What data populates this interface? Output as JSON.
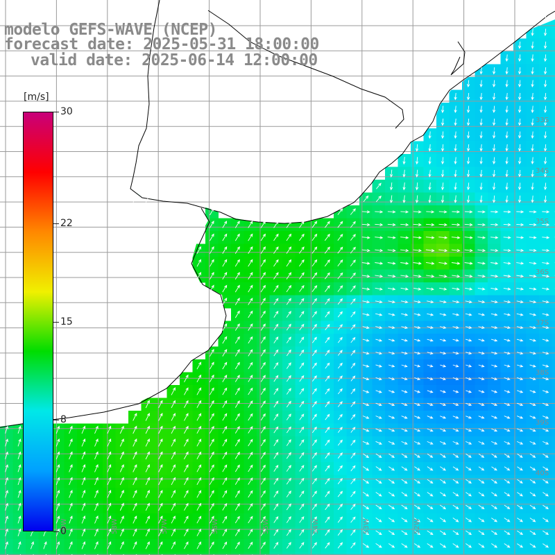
{
  "titles": {
    "line1": "modelo GEFS-WAVE (NCEP)",
    "line2": "forecast date: 2025-05-31 18:00:00",
    "line3": "valid date: 2025-06-14 12:00:00"
  },
  "colorbar": {
    "units": "[m/s]",
    "ticks": [
      "30",
      "22",
      "15",
      "8",
      "0"
    ],
    "tick_values": [
      30,
      22,
      15,
      8,
      0
    ],
    "min": 0,
    "max": 30,
    "stops": [
      "#0000ee",
      "#00a0ff",
      "#00e8e8",
      "#00dd00",
      "#f0f000",
      "#ff8800",
      "#ff0000",
      "#c8007a"
    ]
  },
  "lat_labels": [
    "33S",
    "34S",
    "35S",
    "36S",
    "37S",
    "38S",
    "39S",
    "40S"
  ],
  "lon_labels": [
    "59W",
    "58W",
    "57W",
    "56W",
    "55W",
    "54W",
    "53W",
    "52W"
  ],
  "map": {
    "lon_range": [
      -59.4,
      -51.5
    ],
    "lat_range": [
      -40.5,
      -30.6
    ],
    "grid_interval_deg": 1,
    "land_color": "#ffffff",
    "coast_color": "#000000",
    "grid_color": "#9a9a9a",
    "arrow_color": "#ffffff",
    "field": "wind speed with direction arrows"
  }
}
